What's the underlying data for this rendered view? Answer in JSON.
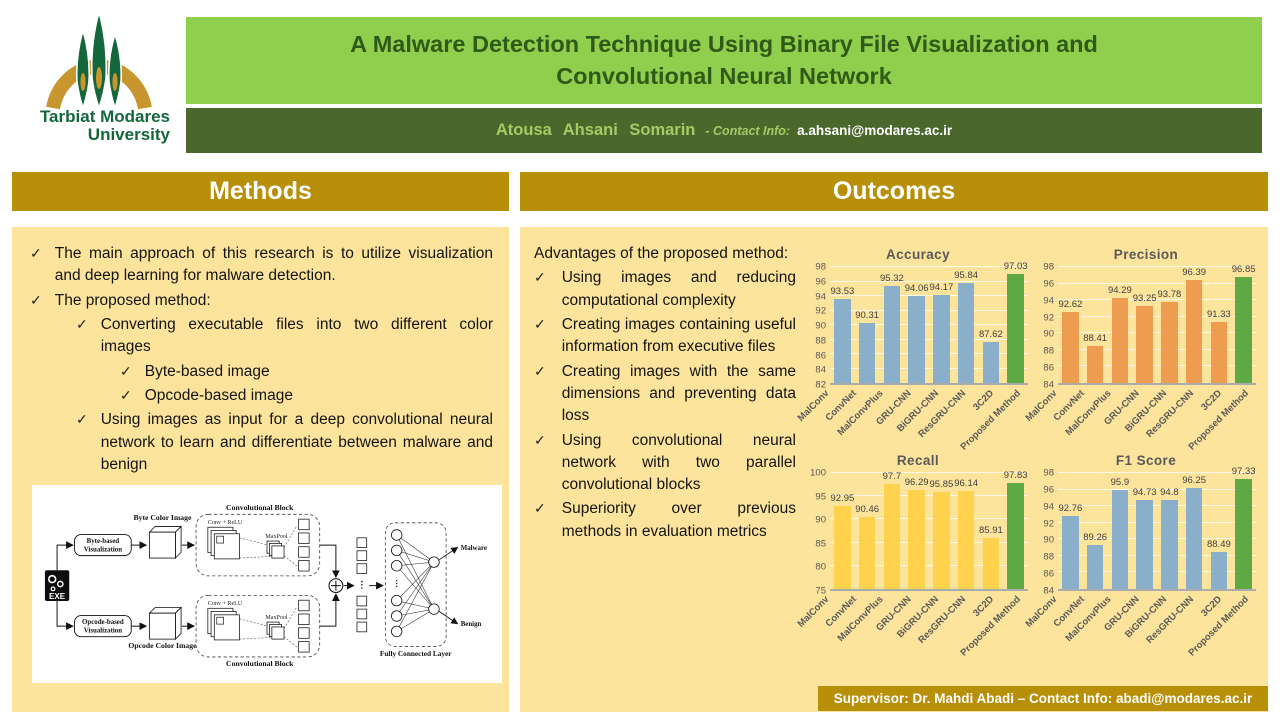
{
  "header": {
    "title_line1": "A Malware Detection Technique Using Binary File Visualization and",
    "title_line2": "Convolutional Neural Network",
    "author": "Atousa Ahsani Somarin",
    "contact_label": "- Contact Info:",
    "contact_email": "a.ahsani@modares.ac.ir"
  },
  "logo": {
    "line1": "Tarbiat Modares",
    "line2": "University"
  },
  "glyphs": {
    "check": "✓"
  },
  "methods": {
    "heading": "Methods",
    "bullets": [
      {
        "level": 1,
        "text": "The main approach of this research is to utilize visualization and deep learning for malware detection."
      },
      {
        "level": 1,
        "text": "The proposed method:"
      },
      {
        "level": 2,
        "text": "Converting executable files into two different color images"
      },
      {
        "level": 3,
        "text": "Byte-based image"
      },
      {
        "level": 3,
        "text": "Opcode-based image"
      },
      {
        "level": 2,
        "text": "Using images as input for a deep convolutional neural network to learn and differentiate between malware and benign"
      }
    ]
  },
  "diagram": {
    "exe_label": "EXE",
    "byte_vis_line1": "Byte-based",
    "byte_vis_line2": "Visualization",
    "byte_image_label": "Byte Color Image",
    "opcode_vis_line1": "Opcode-based",
    "opcode_vis_line2": "Visualization",
    "opcode_image_label": "Opcode Color Image",
    "conv_block_top": "Convolutional Block",
    "conv_block_bottom": "Convolutional Block",
    "conv_relu_top": "Conv + ReLU",
    "conv_relu_bottom": "Conv + ReLU",
    "maxpool_top": "MaxPool",
    "maxpool_bottom": "MaxPool",
    "fc_label": "Fully Connected Layer",
    "output_malware": "Malware",
    "output_benign": "Benign"
  },
  "outcomes": {
    "heading": "Outcomes",
    "intro": "Advantages of the proposed method:",
    "bullets": [
      "Using images and reducing computational complexity",
      "Creating images containing useful information from executive files",
      "Creating images with the same dimensions and preventing data loss",
      "Using convolutional neural network with two parallel convolutional blocks",
      "Superiority over previous methods in evaluation metrics"
    ]
  },
  "footer": {
    "supervisor": "Supervisor: Dr. Mahdi Abadi – Contact Info: abadi@modares.ac.ir"
  },
  "colors": {
    "title_bar_green": "#90CE4E",
    "author_bar_green": "#4A672C",
    "section_gold": "#B78F09",
    "panel_yellow": "#FCE49C",
    "chart_blue": "#8AAFCB",
    "chart_orange": "#EE9C50",
    "chart_yellow": "#FFD24D",
    "highlight_green": "#5FA944"
  },
  "chart_data": [
    {
      "type": "bar",
      "title": "Accuracy",
      "categories": [
        "MalConv",
        "ConvNet",
        "MalConvPlus",
        "GRU-CNN",
        "BiGRU-CNN",
        "ResGRU-CNN",
        "3C2D",
        "Proposed Method"
      ],
      "values": [
        93.53,
        90.31,
        95.32,
        94.06,
        94.17,
        95.84,
        87.62,
        97.03
      ],
      "ylim": [
        82,
        98
      ],
      "ytick_step": 2,
      "grid": true,
      "legend": false,
      "bar_color": "#8AAFCB",
      "highlight_color": "#5FA944",
      "highlight_index": 7
    },
    {
      "type": "bar",
      "title": "Precision",
      "categories": [
        "MalConv",
        "ConvNet",
        "MalConvPlus",
        "GRU-CNN",
        "BiGRU-CNN",
        "ResGRU-CNN",
        "3C2D",
        "Proposed Method"
      ],
      "values": [
        92.62,
        88.41,
        94.29,
        93.25,
        93.78,
        96.39,
        91.33,
        96.85
      ],
      "ylim": [
        84,
        98
      ],
      "ytick_step": 2,
      "grid": true,
      "legend": false,
      "bar_color": "#EE9C50",
      "highlight_color": "#5FA944",
      "highlight_index": 7
    },
    {
      "type": "bar",
      "title": "Recall",
      "categories": [
        "MalConv",
        "ConvNet",
        "MalConvPlus",
        "GRU-CNN",
        "BiGRU-CNN",
        "ResGRU-CNN",
        "3C2D",
        "Proposed Method"
      ],
      "values": [
        92.95,
        90.46,
        97.7,
        96.29,
        95.85,
        96.14,
        85.91,
        97.83
      ],
      "ylim": [
        75,
        100
      ],
      "ytick_step": 5,
      "grid": true,
      "legend": false,
      "bar_color": "#FFD24D",
      "highlight_color": "#5FA944",
      "highlight_index": 7
    },
    {
      "type": "bar",
      "title": "F1 Score",
      "categories": [
        "MalConv",
        "ConvNet",
        "MalConvPlus",
        "GRU-CNN",
        "BiGRU-CNN",
        "ResGRU-CNN",
        "3C2D",
        "Proposed Method"
      ],
      "values": [
        92.76,
        89.26,
        95.9,
        94.73,
        94.8,
        96.25,
        88.49,
        97.33
      ],
      "ylim": [
        84,
        98
      ],
      "ytick_step": 2,
      "grid": true,
      "legend": false,
      "bar_color": "#8AAFCB",
      "highlight_color": "#5FA944",
      "highlight_index": 7
    }
  ]
}
